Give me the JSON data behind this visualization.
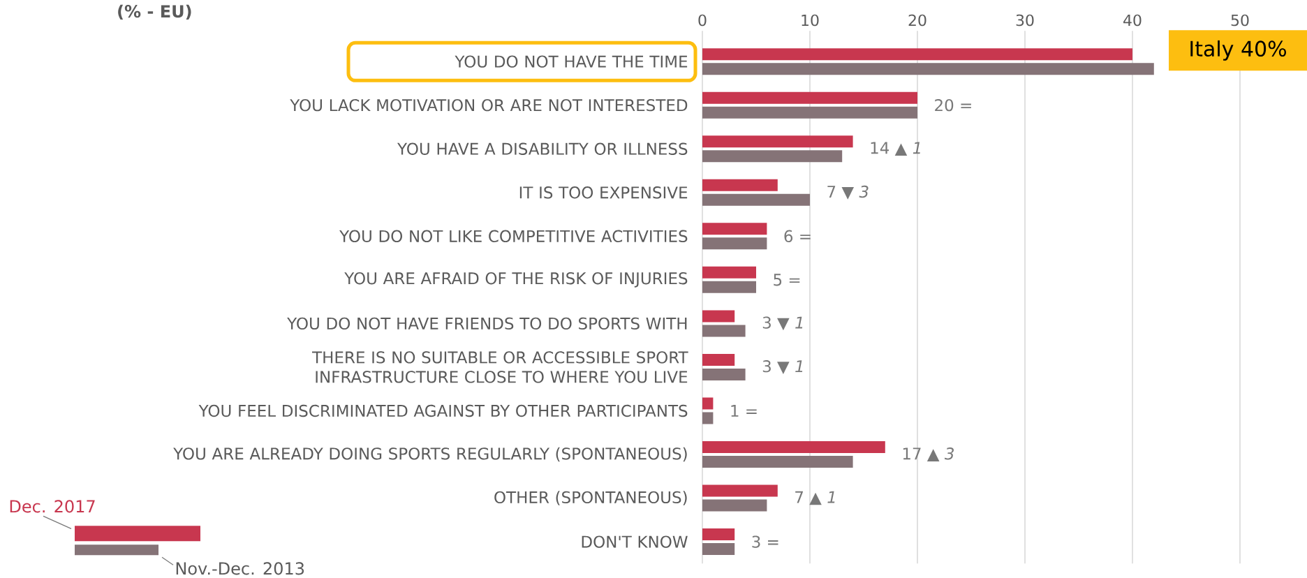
{
  "chart_data": {
    "type": "bar",
    "orientation": "horizontal",
    "title": "(% - EU)",
    "categories": [
      "YOU DO NOT HAVE THE TIME",
      "YOU LACK MOTIVATION OR ARE NOT INTERESTED",
      "YOU HAVE A DISABILITY OR ILLNESS",
      "IT IS TOO EXPENSIVE",
      "YOU DO NOT LIKE COMPETITIVE ACTIVITIES",
      "YOU ARE AFRAID OF THE RISK OF INJURIES",
      "YOU DO NOT HAVE FRIENDS TO DO SPORTS WITH",
      "THERE IS NO SUITABLE OR ACCESSIBLE SPORT INFRASTRUCTURE CLOSE TO WHERE YOU LIVE",
      "YOU FEEL DISCRIMINATED AGAINST BY OTHER PARTICIPANTS",
      "YOU ARE ALREADY DOING SPORTS REGULARLY (SPONTANEOUS)",
      "OTHER (SPONTANEOUS)",
      "DON'T KNOW"
    ],
    "series": [
      {
        "name": "Dec. 2017",
        "color": "#c8374f",
        "values": [
          40,
          20,
          14,
          7,
          6,
          5,
          3,
          3,
          1,
          17,
          7,
          3
        ],
        "value_labels": [
          null,
          "20 =",
          "14 ▲ *1*",
          "7 ▼ *3*",
          "6 =",
          "5 =",
          "3 ▼ *1*",
          "3 ▼ *1*",
          "1 =",
          "17 ▲ *3*",
          "7 ▲ *1*",
          "3 ="
        ]
      },
      {
        "name": "Nov.-Dec. 2013",
        "color": "#857377",
        "values": [
          42,
          20,
          13,
          10,
          6,
          5,
          4,
          4,
          1,
          14,
          6,
          3
        ]
      }
    ],
    "xlim": [
      0,
      50
    ],
    "xticks": [
      0,
      10,
      20,
      30,
      40,
      50
    ],
    "grid": "x",
    "legend": "bottom left",
    "annotations": [
      "Italy 40%"
    ]
  }
}
